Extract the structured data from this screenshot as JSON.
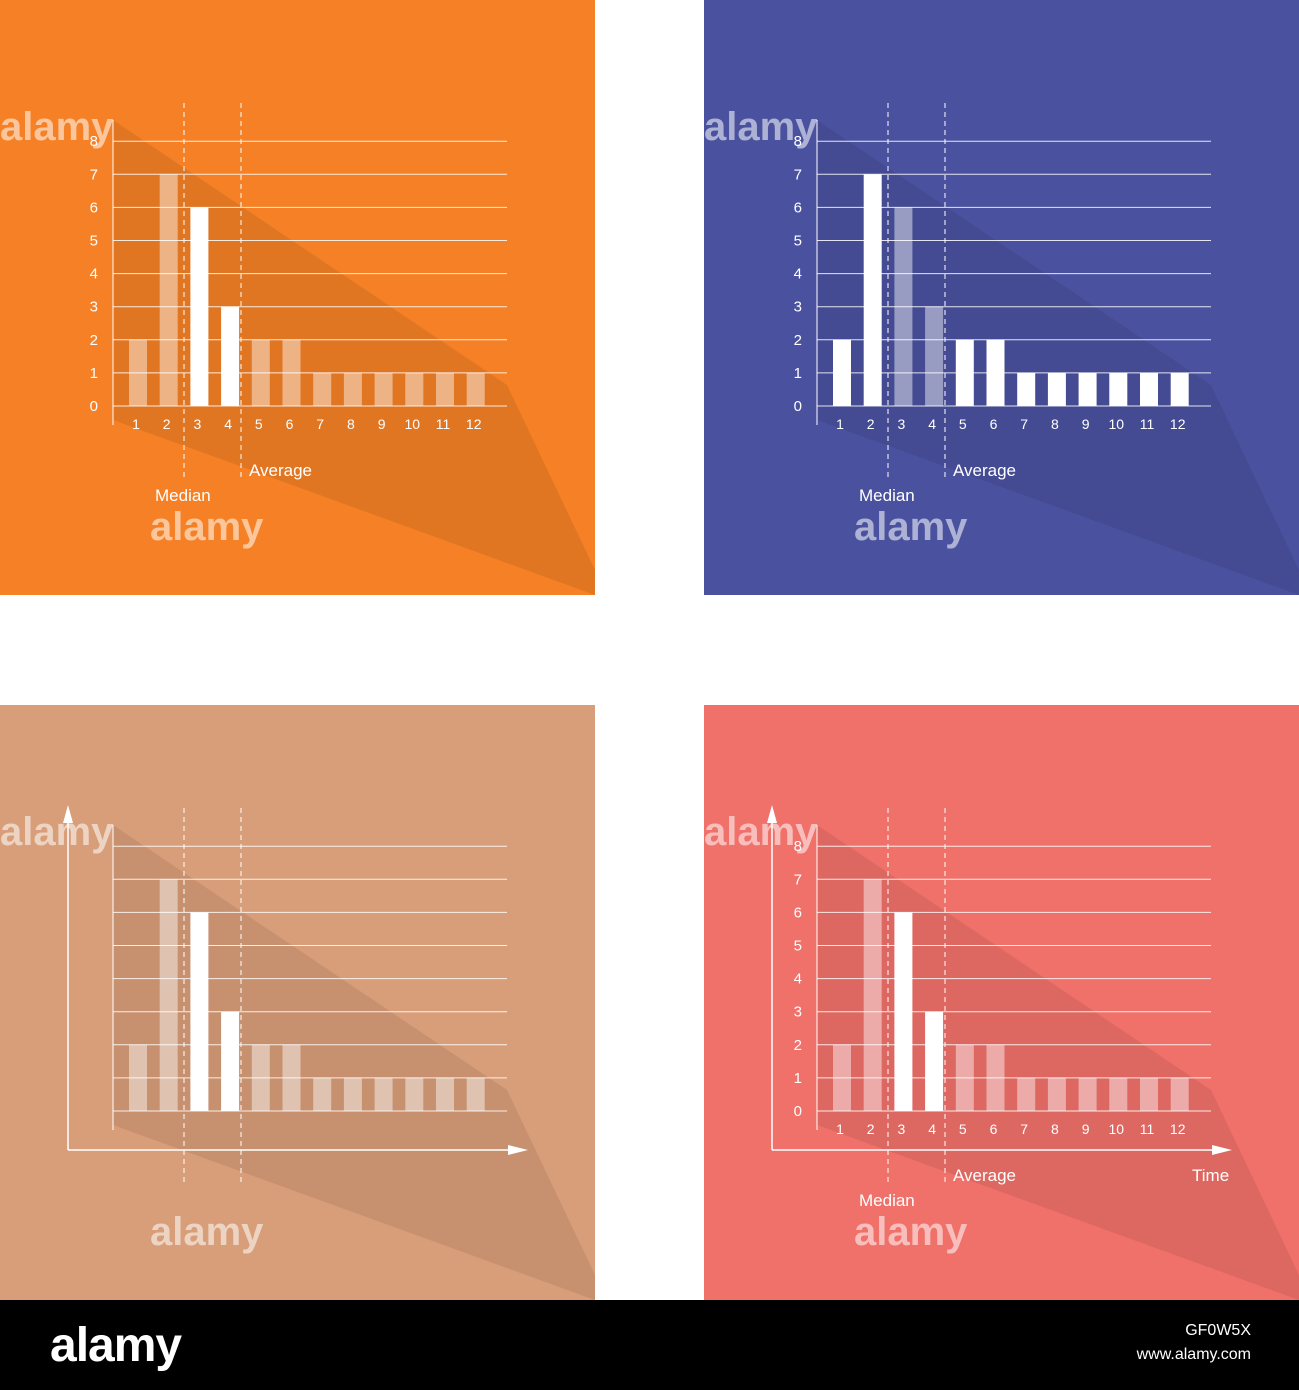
{
  "panels": [
    {
      "id": "p1",
      "bg": "#f58025",
      "show_yticks": true,
      "show_arrows": false,
      "show_xticks": true,
      "show_median_label": true,
      "show_average_label": true,
      "show_time_label": false
    },
    {
      "id": "p2",
      "bg": "#4a52a0",
      "show_yticks": true,
      "show_arrows": false,
      "show_xticks": true,
      "show_median_label": true,
      "show_average_label": true,
      "show_time_label": false
    },
    {
      "id": "p3",
      "bg": "#d89d79",
      "show_yticks": false,
      "show_arrows": true,
      "show_xticks": false,
      "show_median_label": false,
      "show_average_label": false,
      "show_time_label": false
    },
    {
      "id": "p4",
      "bg": "#f0706a",
      "show_yticks": true,
      "show_arrows": true,
      "show_xticks": true,
      "show_median_label": true,
      "show_average_label": true,
      "show_time_label": true
    }
  ],
  "chart_data": {
    "type": "bar",
    "categories": [
      "1",
      "2",
      "3",
      "4",
      "5",
      "6",
      "7",
      "8",
      "9",
      "10",
      "11",
      "12"
    ],
    "values": [
      2,
      7,
      6,
      3,
      2,
      2,
      1,
      1,
      1,
      1,
      1,
      1
    ],
    "ylim": [
      0,
      8
    ],
    "yticks": [
      "0",
      "1",
      "2",
      "3",
      "4",
      "5",
      "6",
      "7",
      "8"
    ],
    "annotations": {
      "median": "Median",
      "average": "Average",
      "time": "Time"
    },
    "grid": true
  },
  "watermark": "alamy",
  "footer": {
    "logo": "alamy",
    "image_id": "GF0W5X",
    "url": "www.alamy.com"
  }
}
